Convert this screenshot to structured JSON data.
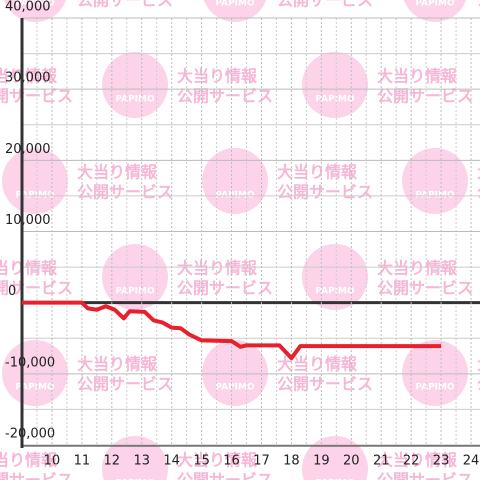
{
  "chart_data": {
    "type": "line",
    "x": [
      9,
      11,
      11.2,
      11.5,
      11.8,
      12.1,
      12.4,
      12.6,
      13.1,
      13.4,
      13.7,
      14,
      14.3,
      14.6,
      15,
      16,
      16.3,
      16.5,
      17.6,
      18,
      18.3,
      23
    ],
    "series": [
      {
        "color": "#e8202e",
        "values": [
          0,
          0,
          -800,
          -1000,
          -500,
          -1000,
          -2200,
          -1200,
          -1300,
          -2500,
          -2800,
          -3500,
          -3600,
          -4500,
          -5300,
          -5400,
          -6200,
          -6000,
          -6000,
          -7800,
          -6100,
          -6100
        ]
      }
    ],
    "xlim": [
      9,
      24.3
    ],
    "xticks": [
      10,
      11,
      12,
      13,
      14,
      15,
      16,
      17,
      18,
      19,
      20,
      21,
      22,
      23,
      24
    ],
    "ylim": [
      -20000,
      40000
    ],
    "yticks": [
      {
        "value": -20000,
        "label": "-20,000"
      },
      {
        "value": -10000,
        "label": "-10,000"
      },
      0,
      {
        "value": 10000,
        "label": "10,000"
      },
      {
        "value": 20000,
        "label": "20,000"
      },
      {
        "value": 30000,
        "label": "30,000"
      },
      {
        "value": 40000,
        "label": "40,000"
      }
    ],
    "grid": true,
    "watermark": {
      "brand": "PAPIMO",
      "line1": "大当り情報",
      "line2": "公開サービス"
    }
  }
}
